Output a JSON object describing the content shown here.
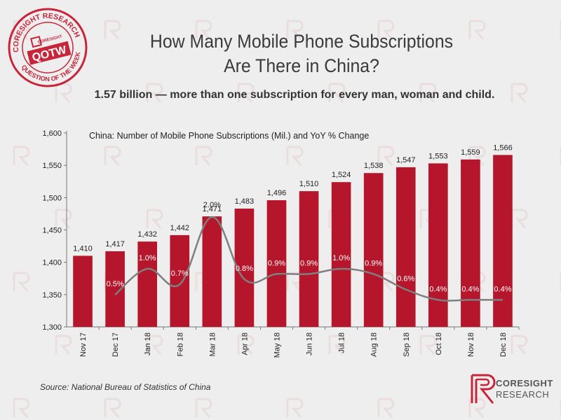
{
  "header": {
    "title_line1": "How Many Mobile Phone Subscriptions",
    "title_line2": "Are There in China?",
    "subtitle": "1.57 billion — more than one subscription for every man, woman and child."
  },
  "stamp": {
    "top_text": "CORESIGHT RESEARCH",
    "bottom_text": "QUESTION OF THE WEEK",
    "center_text": "QOTW",
    "brand_small": "CORESIGHT"
  },
  "source": "Source: National Bureau of Statistics of China",
  "logo": {
    "name": "CORESIGHT",
    "sub": "RESEARCH"
  },
  "colors": {
    "bar": "#b5162b",
    "line": "#7f7f7f",
    "stamp": "#c8253a",
    "text": "#222222"
  },
  "chart_data": {
    "type": "bar",
    "title": "China: Number of Mobile Phone Subscriptions (Mil.) and YoY % Change",
    "categories": [
      "Nov 17",
      "Dec 17",
      "Jan 18",
      "Feb 18",
      "Mar 18",
      "Apr 18",
      "May 18",
      "Jun 18",
      "Jul 18",
      "Aug 18",
      "Sep 18",
      "Oct 18",
      "Nov 18",
      "Dec 18"
    ],
    "series": [
      {
        "values": [
          1410,
          1417,
          1432,
          1442,
          1471,
          1483,
          1496,
          1510,
          1524,
          1538,
          1547,
          1553,
          1559,
          1566
        ],
        "labels": [
          "1,410",
          "1,417",
          "1,432",
          "1,442",
          "1,471",
          "1,483",
          "1,496",
          "1,510",
          "1,524",
          "1,538",
          "1,547",
          "1,553",
          "1,559",
          "1,566"
        ]
      },
      {
        "type": "line",
        "values": [
          null,
          0.5,
          1.0,
          0.7,
          2.0,
          0.8,
          0.9,
          0.9,
          1.0,
          0.9,
          0.6,
          0.4,
          0.4,
          0.4
        ],
        "labels": [
          "",
          "0.5%",
          "1.0%",
          "0.7%",
          "2.0%",
          "0.8%",
          "0.9%",
          "0.9%",
          "1.0%",
          "0.9%",
          "0.6%",
          "0.4%",
          "0.4%",
          "0.4%"
        ]
      }
    ],
    "ylim": [
      1300,
      1600
    ],
    "yticks": [
      "1,300",
      "1,350",
      "1,400",
      "1,450",
      "1,500",
      "1,550",
      "1,600"
    ],
    "grid": false,
    "legend": "none"
  }
}
